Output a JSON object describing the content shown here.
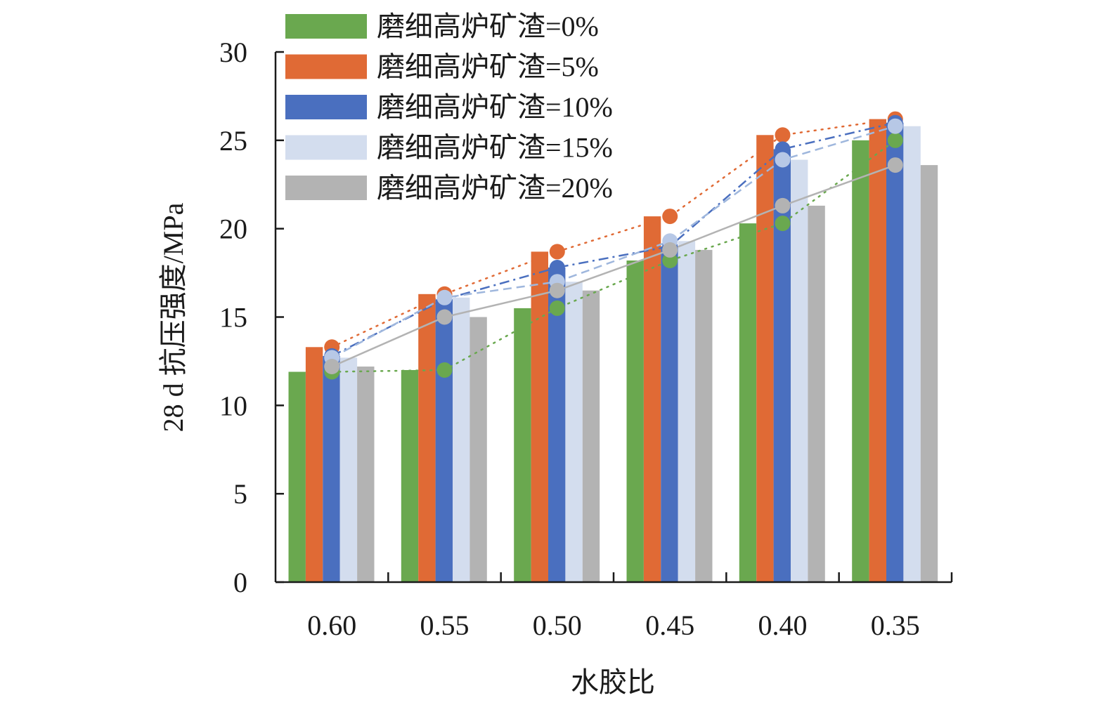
{
  "chart_data": {
    "type": "bar",
    "title": "",
    "xlabel": "水胶比",
    "ylabel": "28 d 抗压强度/MPa",
    "ylim": [
      0,
      30
    ],
    "yticks": [
      "0",
      "5",
      "10",
      "15",
      "20",
      "25",
      "30"
    ],
    "categories": [
      "0.60",
      "0.55",
      "0.50",
      "0.45",
      "0.40",
      "0.35"
    ],
    "legend_position": "top-left",
    "series": [
      {
        "name": "磨细高炉矿渣=0%",
        "color": "#6aa84f",
        "values": [
          11.9,
          12.0,
          15.5,
          18.2,
          20.3,
          25.0
        ],
        "line_style": "dotted",
        "line_color": "#6aa84f"
      },
      {
        "name": "磨细高炉矿渣=5%",
        "color": "#e06a35",
        "values": [
          13.3,
          16.3,
          18.7,
          20.7,
          25.3,
          26.2
        ],
        "line_style": "dotted",
        "line_color": "#e06a35"
      },
      {
        "name": "磨细高炉矿渣=10%",
        "color": "#4a6fbf",
        "values": [
          12.8,
          16.0,
          17.8,
          19.0,
          24.5,
          26.0
        ],
        "line_style": "dashdot",
        "line_color": "#4a6fbf"
      },
      {
        "name": "磨细高炉矿渣=15%",
        "color": "#d3ddee",
        "values": [
          12.7,
          16.1,
          17.0,
          19.3,
          23.9,
          25.8
        ],
        "line_style": "dashed",
        "line_color": "#9fb7dd",
        "marker_color": "#b7c8e6"
      },
      {
        "name": "磨细高炉矿渣=20%",
        "color": "#b3b3b3",
        "values": [
          12.2,
          15.0,
          16.5,
          18.8,
          21.3,
          23.6
        ],
        "line_style": "solid",
        "line_color": "#b3b3b3"
      }
    ]
  }
}
